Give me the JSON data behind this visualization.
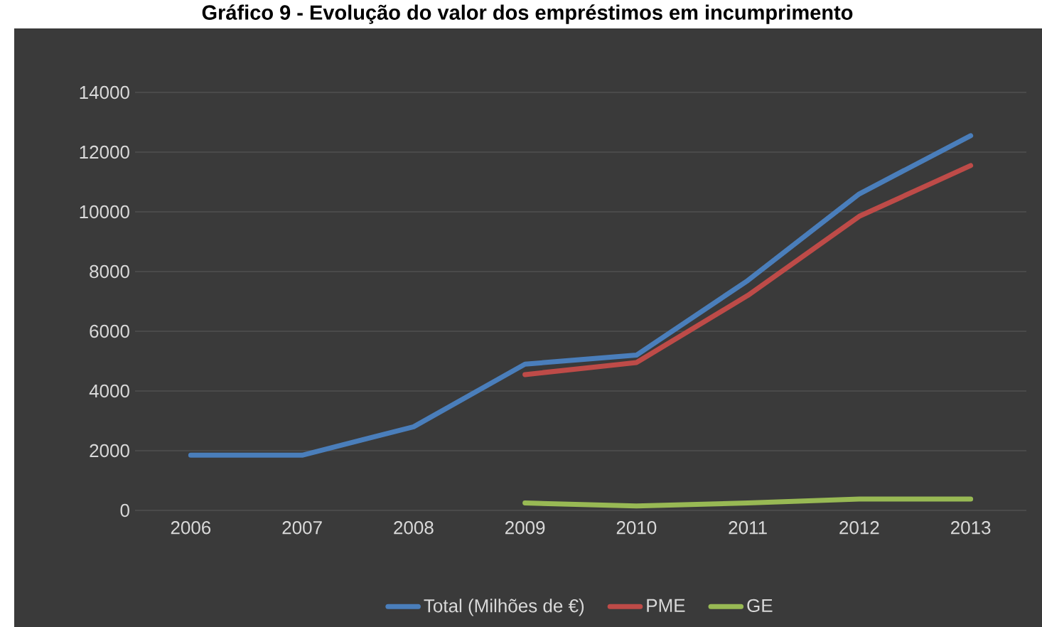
{
  "chart_data": {
    "type": "line",
    "title": "Gráfico 9 - Evolução do valor dos empréstimos em incumprimento",
    "categories": [
      "2006",
      "2007",
      "2008",
      "2009",
      "2010",
      "2011",
      "2012",
      "2013"
    ],
    "series": [
      {
        "name": "Total (Milhões de €)",
        "color": "#4a7ebb",
        "values": [
          1850,
          1850,
          2800,
          4900,
          5200,
          7700,
          10600,
          12550
        ]
      },
      {
        "name": "PME",
        "color": "#be4b48",
        "values": [
          null,
          null,
          null,
          4550,
          4950,
          7200,
          9850,
          11550
        ]
      },
      {
        "name": "GE",
        "color": "#98b954",
        "values": [
          null,
          null,
          null,
          250,
          150,
          250,
          380,
          380
        ]
      }
    ],
    "ylim": [
      0,
      14000
    ],
    "yticks": [
      0,
      2000,
      4000,
      6000,
      8000,
      10000,
      12000,
      14000
    ],
    "grid": "y",
    "legend": "bottom",
    "marker": "none",
    "line_style": "solid"
  }
}
